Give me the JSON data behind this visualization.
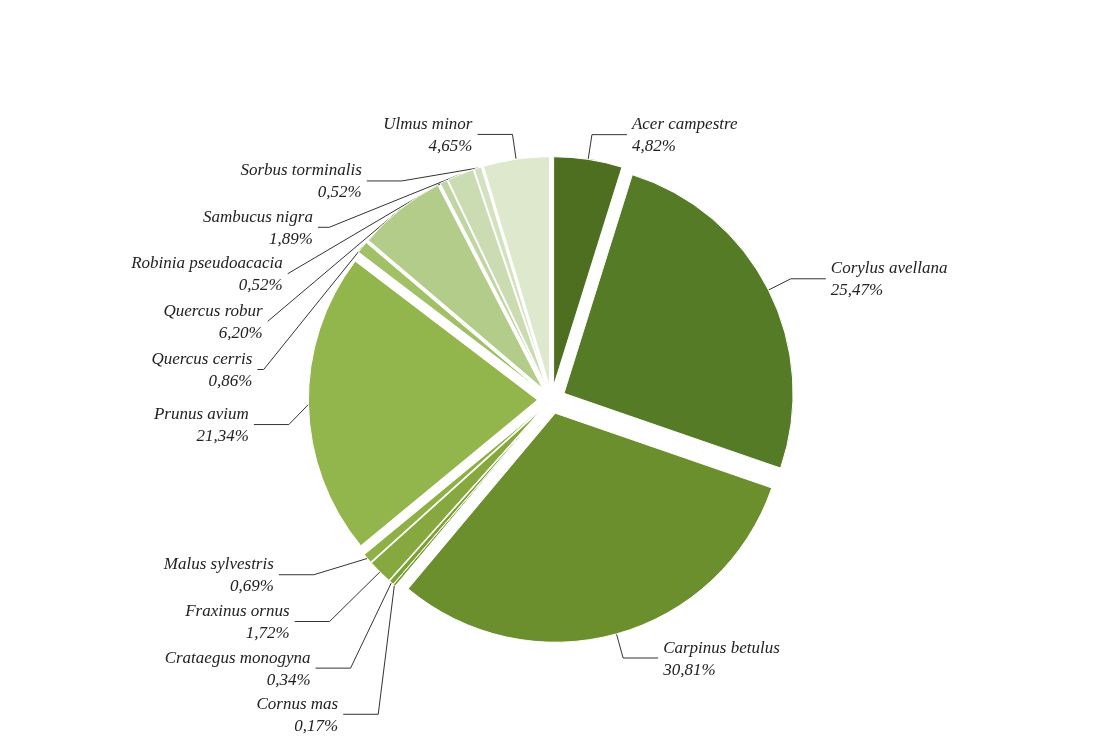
{
  "chart_data": {
    "type": "pie",
    "categories": [
      "Acer campestre",
      "Corylus avellana",
      "Carpinus betulus",
      "Cornus mas",
      "Crataegus monogyna",
      "Fraxinus ornus",
      "Malus sylvestris",
      "Prunus avium",
      "Quercus cerris",
      "Quercus robur",
      "Robinia pseudoacacia",
      "Sambucus nigra",
      "Sorbus torminalis",
      "Ulmus minor"
    ],
    "values": [
      4.82,
      25.47,
      30.81,
      0.17,
      0.34,
      1.72,
      0.69,
      21.34,
      0.86,
      6.2,
      0.52,
      1.89,
      0.52,
      4.65
    ],
    "value_labels": [
      "4,82%",
      "25,47%",
      "30,81%",
      "0,17%",
      "0,34%",
      "1,72%",
      "0,69%",
      "21,34%",
      "0,86%",
      "6,20%",
      "0,52%",
      "1,89%",
      "0,52%",
      "4,65%"
    ],
    "colors": [
      "#4e6e20",
      "#567b26",
      "#6a8f2c",
      "#74972f",
      "#7ea136",
      "#86a83e",
      "#8fb046",
      "#92b64c",
      "#a2c066",
      "#b3cc8a",
      "#c1d5a2",
      "#cbdcb2",
      "#d3e1bf",
      "#dde8cd"
    ],
    "legend": false
  }
}
